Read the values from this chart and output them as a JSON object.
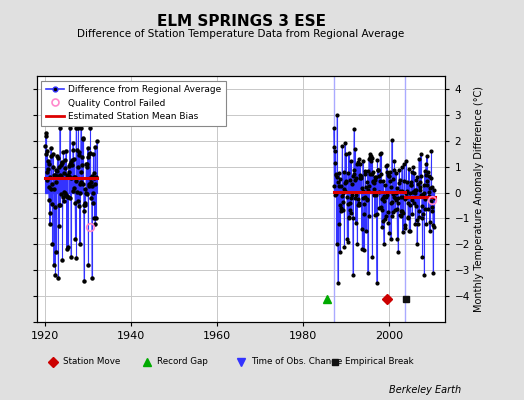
{
  "title": "ELM SPRINGS 3 ESE",
  "subtitle": "Difference of Station Temperature Data from Regional Average",
  "ylabel_right": "Monthly Temperature Anomaly Difference (°C)",
  "xlim": [
    1918,
    2013
  ],
  "ylim": [
    -5,
    4.5
  ],
  "yticks_right": [
    -4,
    -3,
    -2,
    -1,
    0,
    1,
    2,
    3,
    4
  ],
  "xticks": [
    1920,
    1940,
    1960,
    1980,
    2000
  ],
  "bg_color": "#e0e0e0",
  "plot_bg_color": "#ffffff",
  "grid_color": "#c8c8c8",
  "segment1_bias": 0.55,
  "segment1_start": 1920.0,
  "segment1_end": 1932.0,
  "segment2_bias": 0.02,
  "segment2_start": 1987.0,
  "segment2_end": 2003.5,
  "segment3_bias": -0.18,
  "segment3_start": 2003.5,
  "segment3_end": 2010.5,
  "vline1_x": 1987.0,
  "vline2_x": 2003.5,
  "record_gap_x": 1985.5,
  "station_move_x": 1999.5,
  "empirical_break_x": 2003.8,
  "qc_fail_x1": 1930.5,
  "qc_fail_y1": -1.35,
  "qc_fail_x2": 2010.0,
  "qc_fail_y2": -0.3,
  "data_color": "#3333ff",
  "bias_color": "#dd0000",
  "marker_color": "#000000",
  "vline_color": "#aaaaff",
  "berkeley_earth_text": "Berkeley Earth",
  "seed1": 17,
  "seed2": 99,
  "seed3": 55
}
